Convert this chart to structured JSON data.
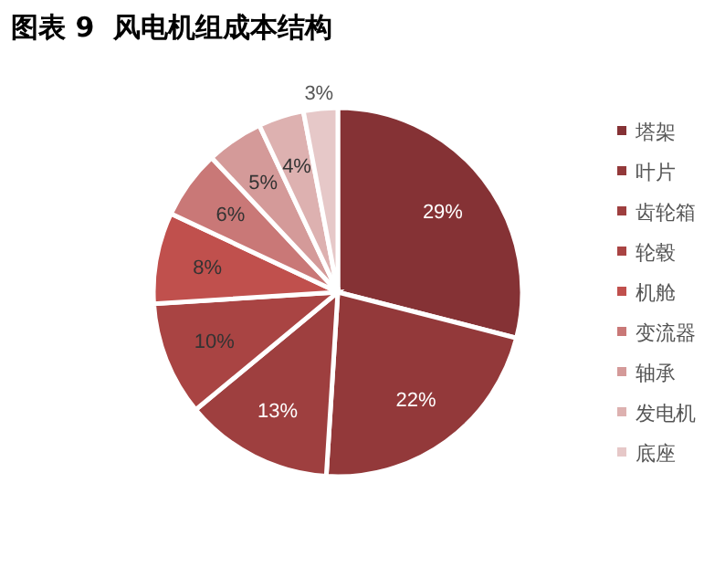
{
  "chart_data": {
    "type": "pie",
    "title": "图表 9  风电机组成本结构",
    "categories": [
      "塔架",
      "叶片",
      "齿轮箱",
      "轮毂",
      "机舱",
      "变流器",
      "轴承",
      "发电机",
      "底座"
    ],
    "values": [
      29,
      22,
      13,
      10,
      8,
      6,
      5,
      4,
      3
    ],
    "colors": [
      "#853235",
      "#93393a",
      "#9e3f3f",
      "#a94443",
      "#c0504d",
      "#c97877",
      "#d49a99",
      "#ddb1b0",
      "#e6c8c8"
    ],
    "value_labels": [
      "29%",
      "22%",
      "13%",
      "10%",
      "8%",
      "6%",
      "5%",
      "4%",
      "3%"
    ],
    "legend": "right"
  }
}
